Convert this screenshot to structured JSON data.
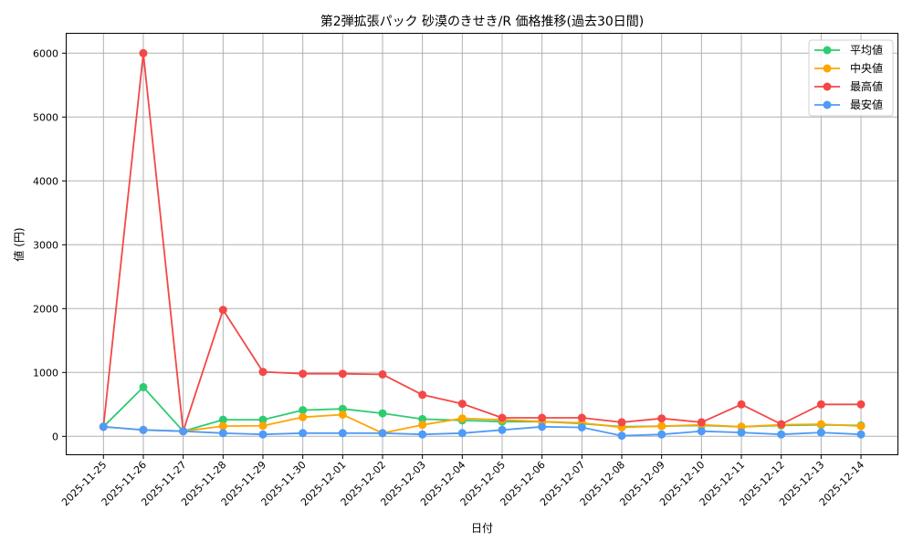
{
  "chart_data": {
    "type": "line",
    "title": "第2弾拡張パック 砂漠のきせき/R 価格推移(過去30日間)",
    "xlabel": "日付",
    "ylabel": "値 (円)",
    "ylim": [
      -300,
      6300
    ],
    "yticks": [
      0,
      1000,
      2000,
      3000,
      4000,
      5000,
      6000
    ],
    "grid": true,
    "legend_position": "upper right",
    "categories": [
      "2025-11-25",
      "2025-11-26",
      "2025-11-27",
      "2025-11-28",
      "2025-11-29",
      "2025-11-30",
      "2025-12-01",
      "2025-12-02",
      "2025-12-03",
      "2025-12-04",
      "2025-12-05",
      "2025-12-06",
      "2025-12-07",
      "2025-12-08",
      "2025-12-09",
      "2025-12-10",
      "2025-12-11",
      "2025-12-12",
      "2025-12-13",
      "2025-12-14"
    ],
    "series": [
      {
        "name": "平均値",
        "color": "#2ecc71",
        "values": [
          150,
          770,
          80,
          260,
          260,
          410,
          430,
          360,
          270,
          250,
          230,
          230,
          200,
          150,
          160,
          170,
          150,
          170,
          180,
          170
        ]
      },
      {
        "name": "中央値",
        "color": "#ffa500",
        "values": [
          150,
          100,
          80,
          160,
          165,
          300,
          340,
          50,
          180,
          280,
          260,
          230,
          210,
          140,
          160,
          180,
          150,
          180,
          190,
          160
        ]
      },
      {
        "name": "最高値",
        "color": "#f44747",
        "values": [
          150,
          6000,
          80,
          1980,
          1010,
          980,
          980,
          970,
          650,
          510,
          290,
          290,
          290,
          220,
          280,
          220,
          500,
          190,
          500,
          500
        ]
      },
      {
        "name": "最安値",
        "color": "#4f9bf7",
        "values": [
          150,
          100,
          80,
          50,
          30,
          50,
          50,
          50,
          30,
          50,
          100,
          150,
          140,
          10,
          30,
          80,
          60,
          30,
          60,
          30
        ]
      }
    ]
  }
}
